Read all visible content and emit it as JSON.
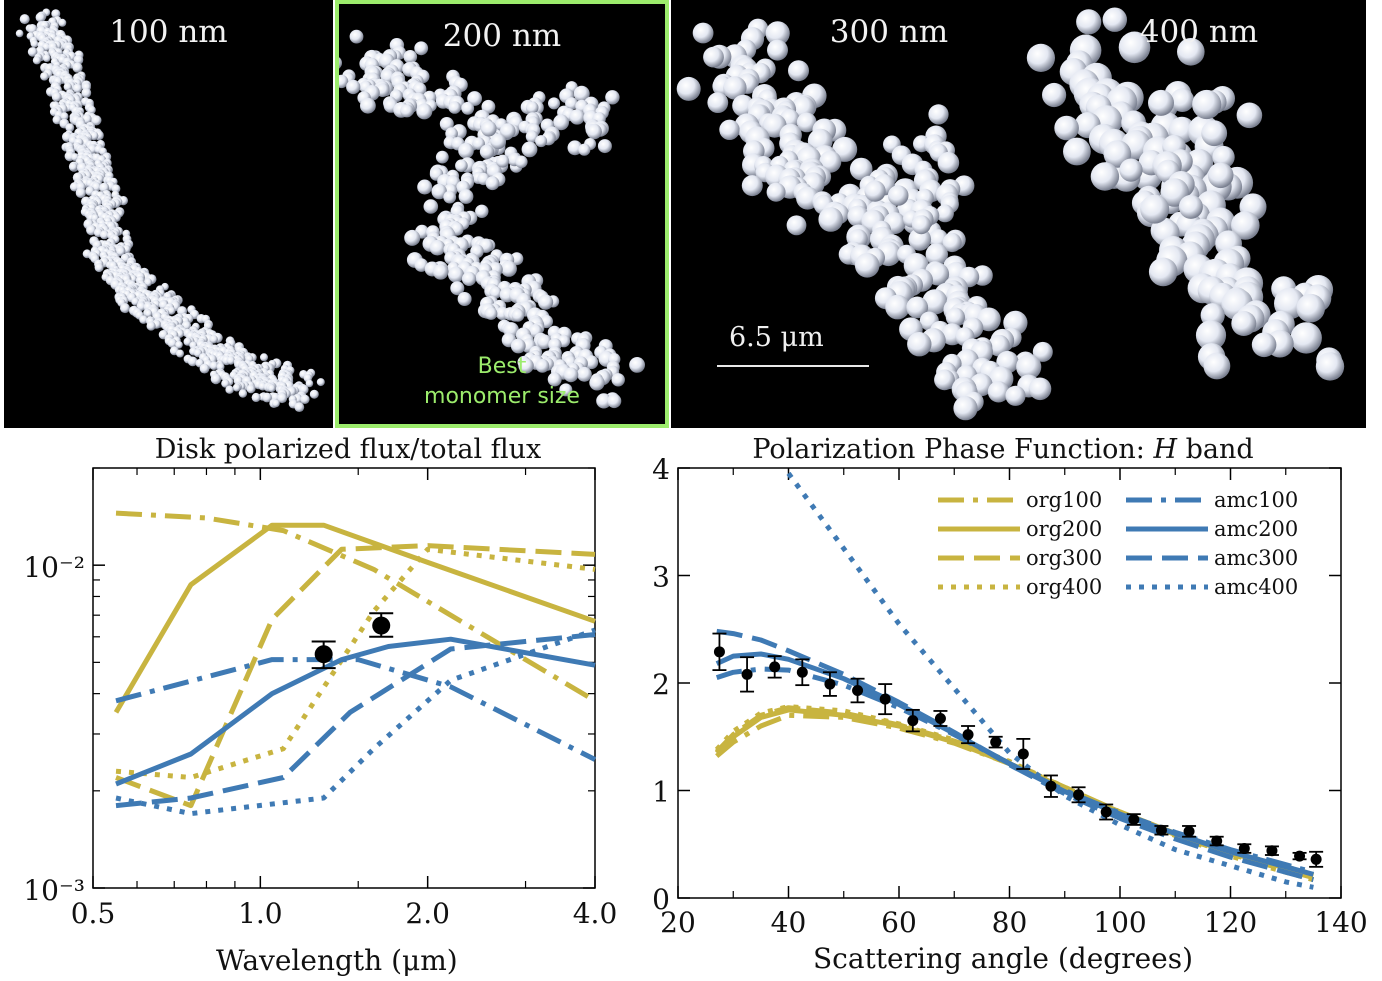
{
  "panels": {
    "p100": {
      "label": "100 nm"
    },
    "p200": {
      "label": "200 nm",
      "note_line1": "Best",
      "note_line2": "monomer size"
    },
    "p300": {
      "label": "300 nm"
    },
    "p400": {
      "label": "400 nm"
    },
    "scale_bar": {
      "label": "6.5 μm"
    }
  },
  "colors": {
    "org": "#c8b440",
    "amc": "#3f7ab4",
    "highlight": "#9cec6c"
  },
  "chart_data": [
    {
      "type": "line",
      "title": "Disk polarized flux/total flux",
      "xlabel": "Wavelength (μm)",
      "ylabel": "",
      "xscale": "log",
      "yscale": "log",
      "xlim": [
        0.5,
        4.0
      ],
      "ylim": [
        0.001,
        0.02
      ],
      "xticks": [
        0.5,
        1.0,
        2.0,
        4.0
      ],
      "xtick_labels": [
        "0.5",
        "1.0",
        "2.0",
        "4.0"
      ],
      "yticks": [
        0.001,
        0.01
      ],
      "ytick_labels": [
        "10⁻³",
        "10⁻²"
      ],
      "series": [
        {
          "name": "org100",
          "color": "org",
          "dash": "dashdot",
          "x": [
            0.55,
            0.8,
            1.1,
            1.6,
            2.2,
            4.0
          ],
          "y": [
            0.0145,
            0.014,
            0.0128,
            0.0097,
            0.007,
            0.0038
          ]
        },
        {
          "name": "org200",
          "color": "org",
          "dash": "solid",
          "x": [
            0.55,
            0.75,
            1.05,
            1.3,
            2.0,
            4.0
          ],
          "y": [
            0.0035,
            0.0087,
            0.0133,
            0.0133,
            0.0102,
            0.0067
          ]
        },
        {
          "name": "org300",
          "color": "org",
          "dash": "dashed",
          "x": [
            0.55,
            0.75,
            1.05,
            1.4,
            2.0,
            4.0
          ],
          "y": [
            0.0022,
            0.0018,
            0.0068,
            0.0112,
            0.0115,
            0.0108
          ]
        },
        {
          "name": "org400",
          "color": "org",
          "dash": "dotted",
          "x": [
            0.55,
            0.75,
            1.1,
            1.6,
            2.0,
            4.0
          ],
          "y": [
            0.0023,
            0.0022,
            0.0027,
            0.0072,
            0.0112,
            0.0097
          ]
        },
        {
          "name": "amc100",
          "color": "amc",
          "dash": "dashdot",
          "x": [
            0.55,
            1.05,
            1.2,
            1.5,
            2.2,
            4.0
          ],
          "y": [
            0.0038,
            0.0051,
            0.0051,
            0.0051,
            0.0042,
            0.0025
          ]
        },
        {
          "name": "amc200",
          "color": "amc",
          "dash": "solid",
          "x": [
            0.55,
            0.75,
            1.05,
            1.4,
            1.7,
            2.2,
            4.0
          ],
          "y": [
            0.0021,
            0.0026,
            0.004,
            0.0051,
            0.0056,
            0.0059,
            0.0049
          ]
        },
        {
          "name": "amc300",
          "color": "amc",
          "dash": "dashed",
          "x": [
            0.55,
            0.75,
            1.1,
            1.45,
            2.2,
            4.0
          ],
          "y": [
            0.0018,
            0.0019,
            0.0022,
            0.0035,
            0.0055,
            0.0061
          ]
        },
        {
          "name": "amc400",
          "color": "amc",
          "dash": "dotted",
          "x": [
            0.55,
            0.75,
            1.3,
            1.6,
            2.2,
            4.0
          ],
          "y": [
            0.0019,
            0.0017,
            0.0019,
            0.0027,
            0.0044,
            0.0063
          ]
        }
      ],
      "observations": [
        {
          "x": 1.3,
          "y": 0.0053,
          "ylo": 0.0048,
          "yhi": 0.0058,
          "size": "large"
        },
        {
          "x": 1.65,
          "y": 0.0065,
          "ylo": 0.006,
          "yhi": 0.0071,
          "size": "large"
        }
      ]
    },
    {
      "type": "line",
      "title": "Polarization Phase Function: ",
      "title_italic": "H",
      "title_suffix": " band",
      "xlabel": "Scattering angle (degrees)",
      "ylabel": "",
      "xlim": [
        20,
        140
      ],
      "ylim": [
        0,
        4
      ],
      "xticks": [
        20,
        40,
        60,
        80,
        100,
        120,
        140
      ],
      "yticks": [
        0,
        1,
        2,
        3,
        4
      ],
      "legend": "top-right",
      "series": [
        {
          "name": "org100",
          "color": "org",
          "dash": "dashdot",
          "x": [
            27,
            30,
            35,
            40,
            50,
            60,
            70,
            80,
            90,
            100,
            110,
            120,
            130,
            135
          ],
          "y": [
            1.32,
            1.45,
            1.6,
            1.7,
            1.68,
            1.58,
            1.44,
            1.25,
            1.02,
            0.8,
            0.6,
            0.43,
            0.29,
            0.22
          ]
        },
        {
          "name": "org200",
          "color": "org",
          "dash": "solid",
          "x": [
            27,
            30,
            35,
            40,
            50,
            60,
            70,
            80,
            90,
            100,
            110,
            120,
            130,
            135
          ],
          "y": [
            1.35,
            1.5,
            1.68,
            1.75,
            1.7,
            1.6,
            1.45,
            1.25,
            1.02,
            0.8,
            0.6,
            0.42,
            0.28,
            0.21
          ]
        },
        {
          "name": "org300",
          "color": "org",
          "dash": "dashed",
          "x": [
            27,
            30,
            35,
            40,
            50,
            60,
            70,
            80,
            90,
            100,
            110,
            120,
            130,
            135
          ],
          "y": [
            1.36,
            1.52,
            1.7,
            1.77,
            1.72,
            1.61,
            1.46,
            1.26,
            1.03,
            0.8,
            0.59,
            0.41,
            0.26,
            0.19
          ]
        },
        {
          "name": "org400",
          "color": "org",
          "dash": "dotted",
          "x": [
            27,
            30,
            35,
            40,
            50,
            60,
            70,
            80,
            90,
            100,
            110,
            120,
            130,
            135
          ],
          "y": [
            1.38,
            1.55,
            1.72,
            1.78,
            1.74,
            1.62,
            1.47,
            1.27,
            1.03,
            0.79,
            0.58,
            0.39,
            0.24,
            0.17
          ]
        },
        {
          "name": "amc100",
          "color": "amc",
          "dash": "dashdot",
          "x": [
            27,
            30,
            35,
            40,
            50,
            60,
            70,
            80,
            90,
            100,
            110,
            120,
            130,
            135
          ],
          "y": [
            2.05,
            2.1,
            2.13,
            2.12,
            1.98,
            1.77,
            1.52,
            1.25,
            1.0,
            0.79,
            0.61,
            0.45,
            0.31,
            0.24
          ]
        },
        {
          "name": "amc200",
          "color": "amc",
          "dash": "solid",
          "x": [
            27,
            30,
            35,
            40,
            50,
            60,
            70,
            80,
            90,
            100,
            110,
            120,
            130,
            135
          ],
          "y": [
            2.18,
            2.25,
            2.27,
            2.22,
            2.04,
            1.8,
            1.53,
            1.25,
            0.99,
            0.78,
            0.6,
            0.43,
            0.29,
            0.22
          ]
        },
        {
          "name": "amc300",
          "color": "amc",
          "dash": "dashed",
          "x": [
            27,
            30,
            35,
            40,
            50,
            60,
            70,
            80,
            90,
            100,
            110,
            120,
            130,
            135
          ],
          "y": [
            2.48,
            2.46,
            2.4,
            2.3,
            2.08,
            1.82,
            1.54,
            1.24,
            0.97,
            0.74,
            0.55,
            0.38,
            0.24,
            0.17
          ]
        },
        {
          "name": "amc400",
          "color": "amc",
          "dash": "dotted",
          "x": [
            40,
            45,
            50,
            55,
            60,
            65,
            70,
            75,
            80,
            90,
            100,
            110,
            120,
            130,
            135
          ],
          "y": [
            3.95,
            3.6,
            3.25,
            2.9,
            2.55,
            2.25,
            1.95,
            1.65,
            1.35,
            0.95,
            0.68,
            0.45,
            0.3,
            0.15,
            0.1
          ]
        }
      ],
      "observations": [
        {
          "x": 27.5,
          "y": 2.29,
          "err": 0.17
        },
        {
          "x": 32.5,
          "y": 2.08,
          "err": 0.16
        },
        {
          "x": 37.5,
          "y": 2.15,
          "err": 0.1
        },
        {
          "x": 42.5,
          "y": 2.1,
          "err": 0.12
        },
        {
          "x": 47.5,
          "y": 1.99,
          "err": 0.11
        },
        {
          "x": 52.5,
          "y": 1.93,
          "err": 0.11
        },
        {
          "x": 57.5,
          "y": 1.85,
          "err": 0.14
        },
        {
          "x": 62.5,
          "y": 1.65,
          "err": 0.1
        },
        {
          "x": 67.5,
          "y": 1.67,
          "err": 0.07
        },
        {
          "x": 72.5,
          "y": 1.52,
          "err": 0.08
        },
        {
          "x": 77.5,
          "y": 1.45,
          "err": 0.05
        },
        {
          "x": 82.5,
          "y": 1.34,
          "err": 0.14
        },
        {
          "x": 87.5,
          "y": 1.04,
          "err": 0.1
        },
        {
          "x": 92.5,
          "y": 0.96,
          "err": 0.07
        },
        {
          "x": 97.5,
          "y": 0.8,
          "err": 0.07
        },
        {
          "x": 102.5,
          "y": 0.73,
          "err": 0.05
        },
        {
          "x": 107.5,
          "y": 0.63,
          "err": 0.04
        },
        {
          "x": 112.5,
          "y": 0.62,
          "err": 0.05
        },
        {
          "x": 117.5,
          "y": 0.53,
          "err": 0.04
        },
        {
          "x": 122.5,
          "y": 0.46,
          "err": 0.04
        },
        {
          "x": 127.5,
          "y": 0.44,
          "err": 0.04
        },
        {
          "x": 132.5,
          "y": 0.39,
          "err": 0.03
        },
        {
          "x": 135.5,
          "y": 0.36,
          "err": 0.07
        }
      ]
    }
  ]
}
